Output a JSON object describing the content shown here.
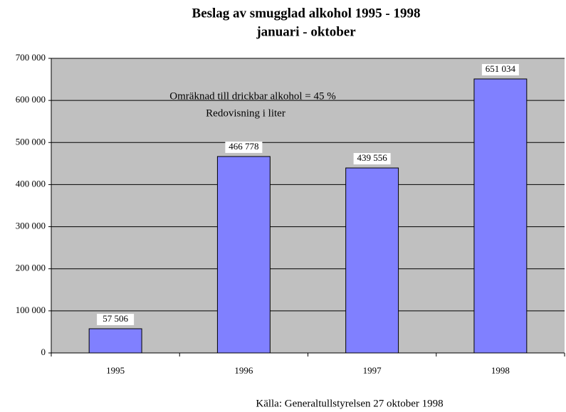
{
  "chart_data": {
    "type": "bar",
    "title": "Beslag av smugglad alkohol 1995 - 1998",
    "subtitle": "januari - oktober",
    "annotations": [
      "Omräknad till drickbar alkohol = 45 %",
      "Redovisning i liter"
    ],
    "source": "Källa: Generaltullstyrelsen 27 oktober 1998",
    "categories": [
      "1995",
      "1996",
      "1997",
      "1998"
    ],
    "values": [
      57506,
      466778,
      439556,
      651034
    ],
    "value_labels": [
      "57 506",
      "466 778",
      "439 556",
      "651 034"
    ],
    "color": "#8080ff",
    "ylim": [
      0,
      700000
    ],
    "yticks": [
      0,
      {
        "value": 100000,
        "label": "100 000"
      },
      {
        "value": 200000,
        "label": "200 000"
      },
      {
        "value": 300000,
        "label": "300 000"
      },
      {
        "value": 400000,
        "label": "400 000"
      },
      {
        "value": 500000,
        "label": "500 000"
      },
      {
        "value": 600000,
        "label": "600 000"
      },
      {
        "value": 700000,
        "label": "700 000"
      }
    ],
    "grid": true
  }
}
